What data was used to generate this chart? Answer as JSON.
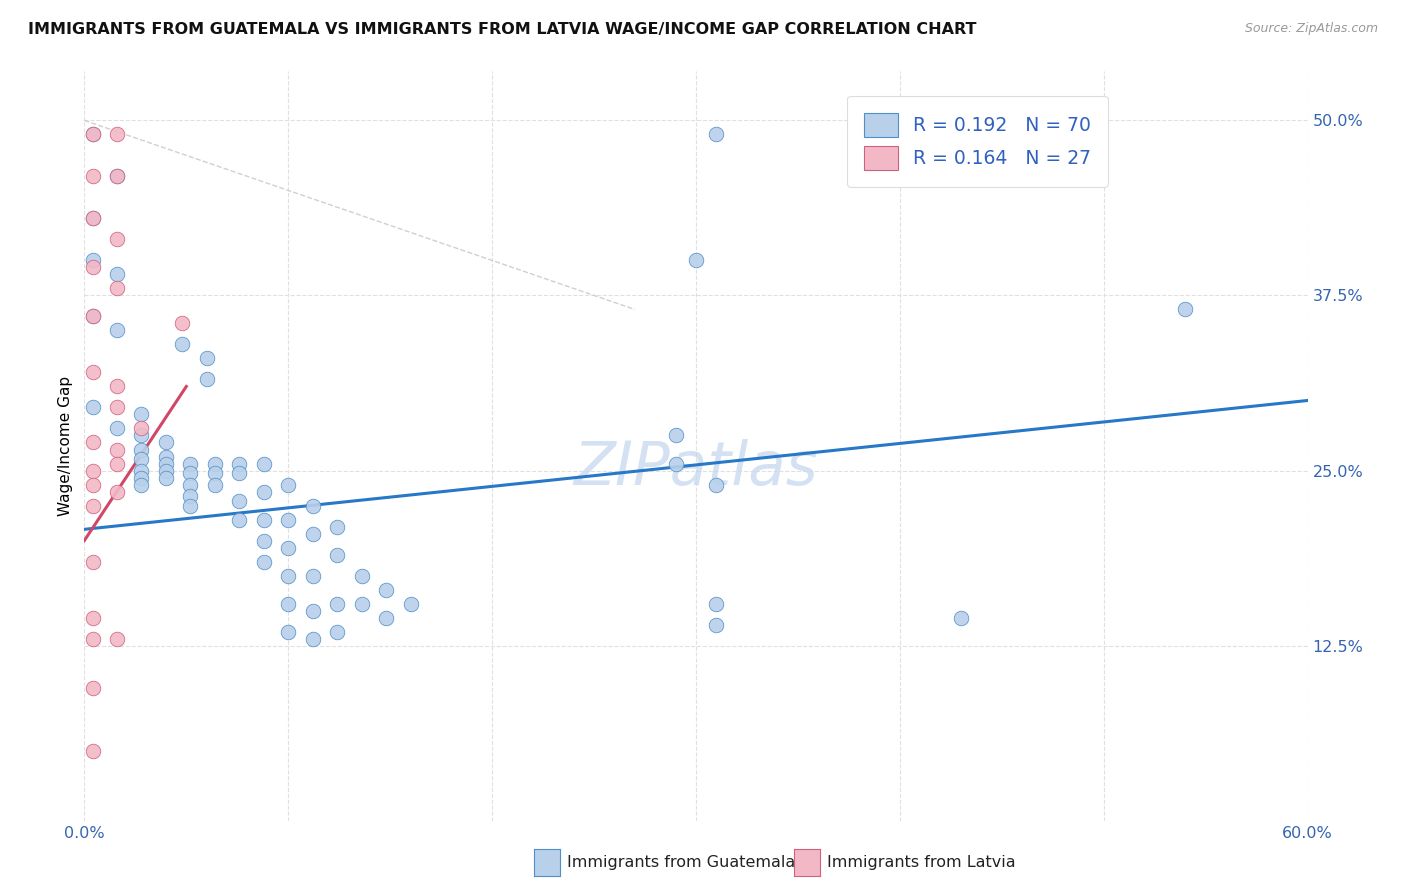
{
  "title": "IMMIGRANTS FROM GUATEMALA VS IMMIGRANTS FROM LATVIA WAGE/INCOME GAP CORRELATION CHART",
  "source": "Source: ZipAtlas.com",
  "ylabel": "Wage/Income Gap",
  "xlim": [
    0.0,
    0.6
  ],
  "ylim": [
    0.0,
    0.535
  ],
  "xticks": [
    0.0,
    0.1,
    0.2,
    0.3,
    0.4,
    0.5,
    0.6
  ],
  "xticklabels": [
    "0.0%",
    "",
    "",
    "",
    "",
    "",
    "60.0%"
  ],
  "ytick_positions": [
    0.125,
    0.25,
    0.375,
    0.5
  ],
  "ytick_labels": [
    "12.5%",
    "25.0%",
    "37.5%",
    "50.0%"
  ],
  "blue_color": "#b8d0ea",
  "pink_color": "#f2b8c6",
  "blue_edge_color": "#5090c8",
  "pink_edge_color": "#d06080",
  "blue_line_color": "#2878c8",
  "pink_line_color": "#d04868",
  "blue_scatter": [
    [
      0.004,
      0.49
    ],
    [
      0.016,
      0.46
    ],
    [
      0.004,
      0.43
    ],
    [
      0.004,
      0.4
    ],
    [
      0.016,
      0.39
    ],
    [
      0.004,
      0.36
    ],
    [
      0.016,
      0.35
    ],
    [
      0.048,
      0.34
    ],
    [
      0.06,
      0.33
    ],
    [
      0.06,
      0.315
    ],
    [
      0.004,
      0.295
    ],
    [
      0.028,
      0.29
    ],
    [
      0.016,
      0.28
    ],
    [
      0.028,
      0.275
    ],
    [
      0.028,
      0.265
    ],
    [
      0.028,
      0.258
    ],
    [
      0.028,
      0.25
    ],
    [
      0.028,
      0.245
    ],
    [
      0.028,
      0.24
    ],
    [
      0.04,
      0.27
    ],
    [
      0.04,
      0.26
    ],
    [
      0.04,
      0.255
    ],
    [
      0.04,
      0.25
    ],
    [
      0.04,
      0.245
    ],
    [
      0.052,
      0.255
    ],
    [
      0.052,
      0.248
    ],
    [
      0.052,
      0.24
    ],
    [
      0.052,
      0.232
    ],
    [
      0.052,
      0.225
    ],
    [
      0.064,
      0.255
    ],
    [
      0.064,
      0.248
    ],
    [
      0.064,
      0.24
    ],
    [
      0.076,
      0.255
    ],
    [
      0.076,
      0.248
    ],
    [
      0.076,
      0.228
    ],
    [
      0.076,
      0.215
    ],
    [
      0.088,
      0.255
    ],
    [
      0.088,
      0.235
    ],
    [
      0.088,
      0.215
    ],
    [
      0.088,
      0.2
    ],
    [
      0.088,
      0.185
    ],
    [
      0.1,
      0.24
    ],
    [
      0.1,
      0.215
    ],
    [
      0.1,
      0.195
    ],
    [
      0.1,
      0.175
    ],
    [
      0.1,
      0.155
    ],
    [
      0.1,
      0.135
    ],
    [
      0.112,
      0.225
    ],
    [
      0.112,
      0.205
    ],
    [
      0.112,
      0.175
    ],
    [
      0.112,
      0.15
    ],
    [
      0.112,
      0.13
    ],
    [
      0.124,
      0.21
    ],
    [
      0.124,
      0.19
    ],
    [
      0.124,
      0.155
    ],
    [
      0.124,
      0.135
    ],
    [
      0.136,
      0.175
    ],
    [
      0.136,
      0.155
    ],
    [
      0.148,
      0.165
    ],
    [
      0.148,
      0.145
    ],
    [
      0.16,
      0.155
    ],
    [
      0.29,
      0.275
    ],
    [
      0.29,
      0.255
    ],
    [
      0.3,
      0.4
    ],
    [
      0.31,
      0.49
    ],
    [
      0.31,
      0.24
    ],
    [
      0.31,
      0.155
    ],
    [
      0.31,
      0.14
    ],
    [
      0.43,
      0.145
    ],
    [
      0.54,
      0.365
    ]
  ],
  "pink_scatter": [
    [
      0.004,
      0.49
    ],
    [
      0.016,
      0.49
    ],
    [
      0.004,
      0.46
    ],
    [
      0.016,
      0.46
    ],
    [
      0.004,
      0.43
    ],
    [
      0.016,
      0.415
    ],
    [
      0.004,
      0.395
    ],
    [
      0.016,
      0.38
    ],
    [
      0.004,
      0.36
    ],
    [
      0.048,
      0.355
    ],
    [
      0.004,
      0.32
    ],
    [
      0.016,
      0.31
    ],
    [
      0.016,
      0.295
    ],
    [
      0.028,
      0.28
    ],
    [
      0.004,
      0.27
    ],
    [
      0.016,
      0.265
    ],
    [
      0.016,
      0.255
    ],
    [
      0.004,
      0.25
    ],
    [
      0.004,
      0.24
    ],
    [
      0.016,
      0.235
    ],
    [
      0.004,
      0.225
    ],
    [
      0.004,
      0.185
    ],
    [
      0.004,
      0.145
    ],
    [
      0.004,
      0.13
    ],
    [
      0.016,
      0.13
    ],
    [
      0.004,
      0.095
    ],
    [
      0.004,
      0.05
    ]
  ],
  "watermark_line1": "ZIP",
  "watermark_line2": "atlas",
  "legend_blue_label": "R = 0.192   N = 70",
  "legend_pink_label": "R = 0.164   N = 27",
  "footer_blue": "Immigrants from Guatemala",
  "footer_pink": "Immigrants from Latvia",
  "blue_trend_x": [
    0.0,
    0.6
  ],
  "blue_trend_y": [
    0.208,
    0.3
  ],
  "pink_trend_x": [
    0.0,
    0.05
  ],
  "pink_trend_y": [
    0.2,
    0.31
  ],
  "diag_line_x": [
    0.0,
    0.27
  ],
  "diag_line_y": [
    0.5,
    0.365
  ]
}
